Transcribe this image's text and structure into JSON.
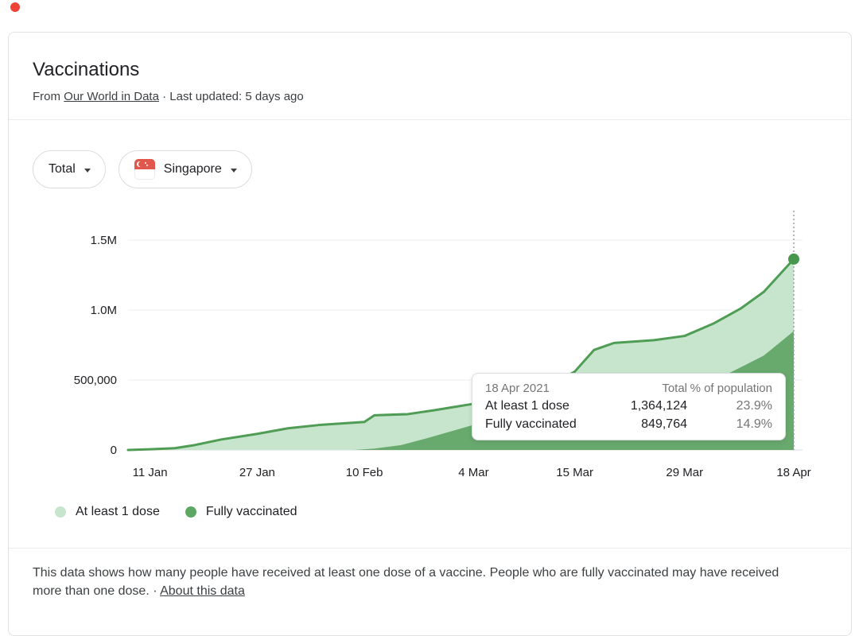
{
  "header": {
    "title": "Vaccinations",
    "source_prefix": "From",
    "source_link": "Our World in Data",
    "separator": "·",
    "last_updated": "Last updated: 5 days ago"
  },
  "controls": {
    "metric_dropdown": {
      "value": "Total"
    },
    "region_dropdown": {
      "value": "Singapore"
    }
  },
  "icons": {
    "metric_chevron": "chevron-down",
    "region_chevron": "chevron-down",
    "region_flag": "singapore-flag"
  },
  "tooltip": {
    "date": "18 Apr 2021",
    "col_total": "Total",
    "col_pct": "% of population",
    "rows": [
      {
        "label": "At least 1 dose",
        "total": "1,364,124",
        "pct": "23.9%"
      },
      {
        "label": "Fully vaccinated",
        "total": "849,764",
        "pct": "14.9%"
      }
    ]
  },
  "legend": [
    {
      "label": "At least 1 dose",
      "color": "#c7e5cc"
    },
    {
      "label": "Fully vaccinated",
      "color": "#5ea763"
    }
  ],
  "footer": {
    "text": "This data shows how many people have received at least one dose of a vaccine. People who are fully vaccinated may have received more than one dose.",
    "separator": "·",
    "link": "About this data"
  },
  "chart_data": {
    "type": "area",
    "title": "Vaccinations - Singapore - Total",
    "xlabel": "",
    "ylabel": "",
    "ylim": [
      0,
      1500000
    ],
    "grid": "horizontal",
    "legend_position": "bottom",
    "y_ticks": [
      {
        "label": "0",
        "value": 0
      },
      {
        "label": "500,000",
        "value": 500000
      },
      {
        "label": "1.0M",
        "value": 1000000
      },
      {
        "label": "1.5M",
        "value": 1500000
      }
    ],
    "x_ticks": [
      {
        "label": "11 Jan",
        "t": 0.033
      },
      {
        "label": "27 Jan",
        "t": 0.194
      },
      {
        "label": "10 Feb",
        "t": 0.355
      },
      {
        "label": "4 Mar",
        "t": 0.519
      },
      {
        "label": "15 Mar",
        "t": 0.671
      },
      {
        "label": "29 Mar",
        "t": 0.836
      },
      {
        "label": "18 Apr",
        "t": 1.0
      }
    ],
    "series": [
      {
        "name": "At least 1 dose",
        "fill": "#c7e5cc",
        "line": "#4f9d55",
        "final_value": 1364124,
        "final_pct_of_population": "23.9%",
        "points": [
          [
            0.0,
            0
          ],
          [
            0.033,
            5000
          ],
          [
            0.07,
            13000
          ],
          [
            0.1,
            35000
          ],
          [
            0.14,
            75000
          ],
          [
            0.194,
            115000
          ],
          [
            0.24,
            155000
          ],
          [
            0.29,
            180000
          ],
          [
            0.355,
            200000
          ],
          [
            0.37,
            248000
          ],
          [
            0.42,
            256000
          ],
          [
            0.46,
            284000
          ],
          [
            0.519,
            330000
          ],
          [
            0.56,
            360000
          ],
          [
            0.61,
            400000
          ],
          [
            0.671,
            560000
          ],
          [
            0.7,
            715000
          ],
          [
            0.73,
            765000
          ],
          [
            0.79,
            785000
          ],
          [
            0.836,
            815000
          ],
          [
            0.88,
            905000
          ],
          [
            0.92,
            1010000
          ],
          [
            0.955,
            1130000
          ],
          [
            1.0,
            1364124
          ]
        ]
      },
      {
        "name": "Fully vaccinated",
        "fill": "#68a96d",
        "line": "#68a96d",
        "final_value": 849764,
        "final_pct_of_population": "14.9%",
        "points": [
          [
            0.34,
            0
          ],
          [
            0.37,
            10000
          ],
          [
            0.41,
            35000
          ],
          [
            0.45,
            85000
          ],
          [
            0.49,
            140000
          ],
          [
            0.519,
            180000
          ],
          [
            0.56,
            205000
          ],
          [
            0.62,
            235000
          ],
          [
            0.671,
            272000
          ],
          [
            0.73,
            320000
          ],
          [
            0.79,
            365000
          ],
          [
            0.836,
            420000
          ],
          [
            0.88,
            495000
          ],
          [
            0.92,
            590000
          ],
          [
            0.955,
            675000
          ],
          [
            1.0,
            849764
          ]
        ]
      }
    ],
    "marker": {
      "t": 1.0,
      "value": 1364124,
      "series": "At least 1 dose",
      "date": "18 Apr 2021"
    },
    "marker_color": "#47984e",
    "dotted_line_color": "#9aa0a6"
  }
}
